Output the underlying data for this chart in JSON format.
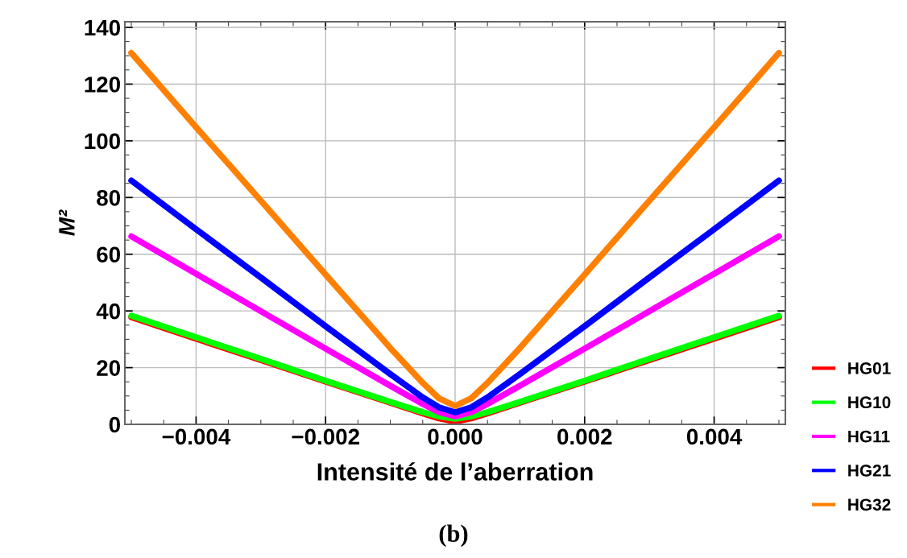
{
  "chart_data": {
    "type": "line",
    "xlabel": "Intensité de l’aberration",
    "ylabel": "M²",
    "annotations": [
      "(b)"
    ],
    "x": [
      -0.005,
      -0.004,
      -0.003,
      -0.002,
      -0.001,
      -0.0005,
      -0.00025,
      0,
      0.00025,
      0.0005,
      0.001,
      0.002,
      0.003,
      0.004,
      0.005
    ],
    "series": [
      {
        "name": "HG01",
        "color": "#ff0000",
        "values": [
          37.8,
          30.2,
          22.7,
          15.1,
          7.6,
          3.9,
          2.1,
          1,
          2.1,
          3.9,
          7.6,
          15.1,
          22.7,
          30.2,
          37.8
        ]
      },
      {
        "name": "HG10",
        "color": "#00ff00",
        "values": [
          38.3,
          30.7,
          23.1,
          15.4,
          7.9,
          4.3,
          2.8,
          2,
          2.8,
          4.3,
          7.9,
          15.4,
          23.1,
          30.7,
          38.3
        ]
      },
      {
        "name": "HG11",
        "color": "#ff00ff",
        "values": [
          66.3,
          53.1,
          39.9,
          26.7,
          13.6,
          7.2,
          4.3,
          2.8,
          4.3,
          7.2,
          13.6,
          26.7,
          39.9,
          53.1,
          66.3
        ]
      },
      {
        "name": "HG21",
        "color": "#0000ff",
        "values": [
          86,
          68.8,
          51.8,
          34.6,
          17.7,
          9.5,
          6,
          4.2,
          6,
          9.5,
          17.7,
          34.6,
          51.8,
          68.8,
          86
        ]
      },
      {
        "name": "HG32",
        "color": "#ff8000",
        "values": [
          131,
          104.8,
          78.9,
          52.8,
          26.9,
          14.6,
          9.2,
          6.5,
          9.2,
          14.6,
          26.9,
          52.8,
          78.9,
          104.8,
          131
        ]
      }
    ],
    "xlim": [
      -0.0051,
      0.0051
    ],
    "ylim": [
      0,
      142
    ],
    "xticks": [
      {
        "value": -0.004,
        "label": "−0.004"
      },
      {
        "value": -0.002,
        "label": "−0.002"
      },
      {
        "value": 0,
        "label": "0.000"
      },
      {
        "value": 0.002,
        "label": "0.002"
      },
      {
        "value": 0.004,
        "label": "0.004"
      }
    ],
    "yticks": [
      0,
      20,
      40,
      60,
      80,
      100,
      120,
      140
    ],
    "grid": true,
    "legend": "bottom right"
  }
}
